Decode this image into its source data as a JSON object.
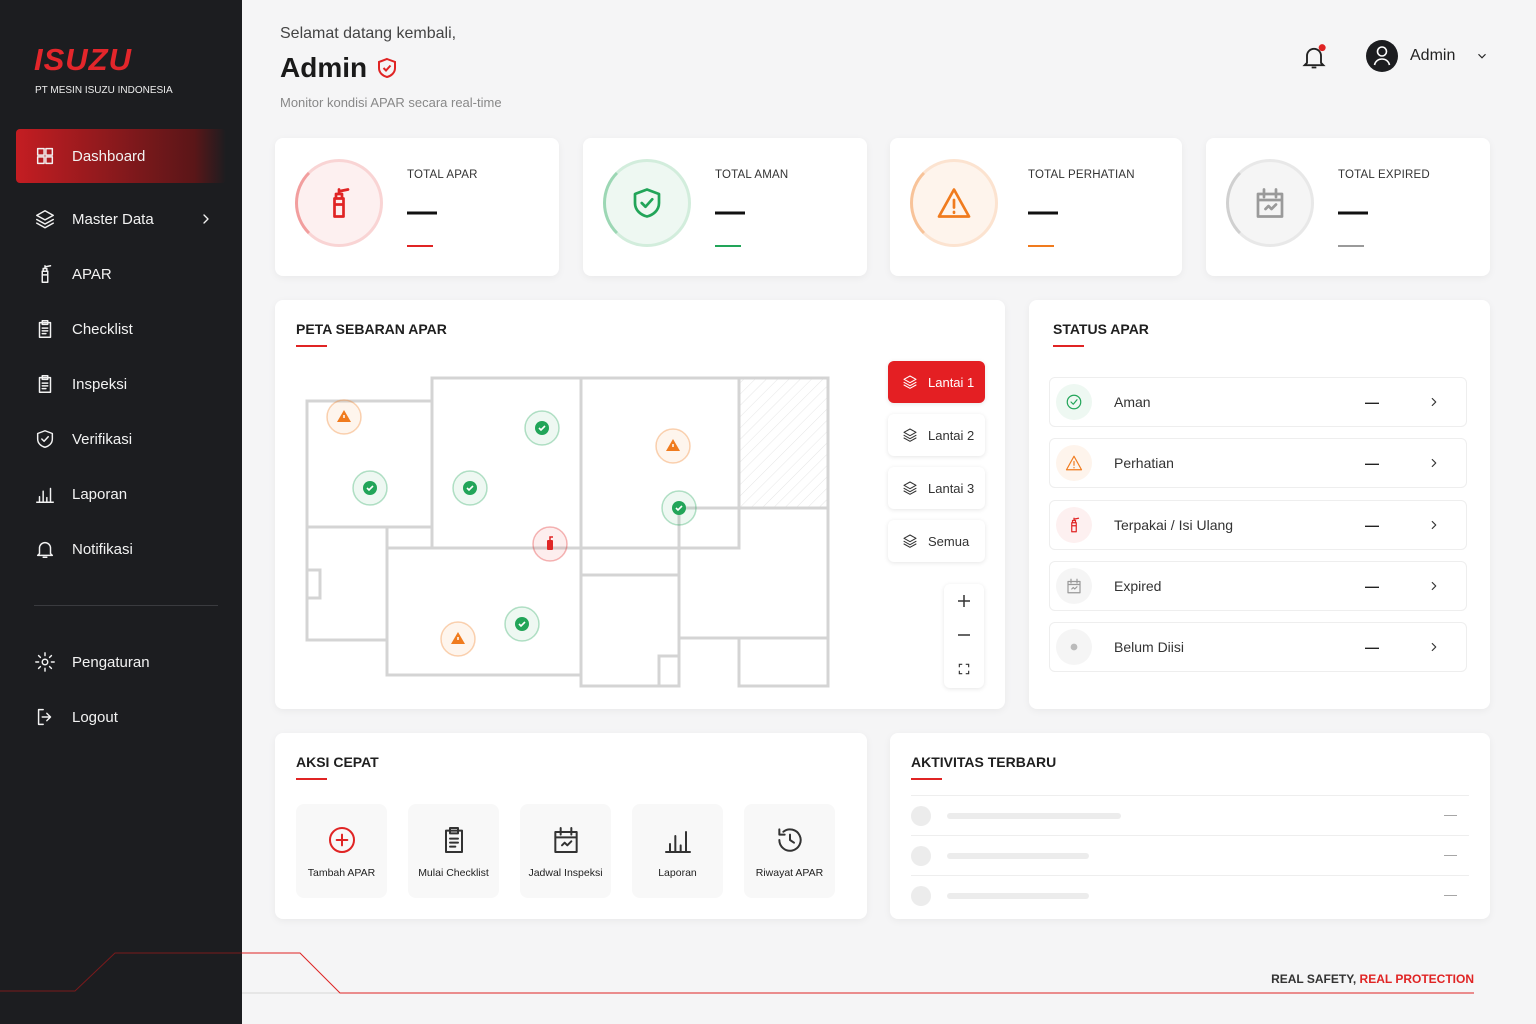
{
  "sidebar": {
    "brand": "ISUZU",
    "company": "PT MESIN ISUZU INDONESIA",
    "menu": [
      "Dashboard",
      "Master Data",
      "APAR",
      "Checklist",
      "Inspeksi",
      "Verifikasi",
      "Laporan",
      "Notifikasi"
    ],
    "settings_menu": [
      "Pengaturan",
      "Logout"
    ]
  },
  "header": {
    "greeting": "Selamat datang kembali,",
    "name": "Admin",
    "subtitle": "Monitor kondisi APAR secara real-time",
    "user": "Admin"
  },
  "stats": [
    {
      "label": "TOTAL APAR",
      "value": "—"
    },
    {
      "label": "TOTAL AMAN",
      "value": "—"
    },
    {
      "label": "TOTAL PERHATIAN",
      "value": "—"
    },
    {
      "label": "TOTAL EXPIRED",
      "value": "—"
    }
  ],
  "map": {
    "title": "PETA SEBARAN APAR",
    "floors": [
      "Lantai 1",
      "Lantai 2",
      "Lantai 3",
      "Semua"
    ]
  },
  "status": {
    "title": "STATUS APAR",
    "rows": [
      {
        "label": "Aman",
        "value": "—"
      },
      {
        "label": "Perhatian",
        "value": "—"
      },
      {
        "label": "Terpakai / Isi Ulang",
        "value": "—"
      },
      {
        "label": "Expired",
        "value": "—"
      },
      {
        "label": "Belum Diisi",
        "value": "—"
      }
    ]
  },
  "quick_actions": {
    "title": "AKSI CEPAT",
    "items": [
      "Tambah APAR",
      "Mulai Checklist",
      "Jadwal Inspeksi",
      "Laporan",
      "Riwayat APAR"
    ]
  },
  "activity": {
    "title": "AKTIVITAS TERBARU",
    "rows": [
      "—",
      "—",
      "—"
    ]
  },
  "footer": {
    "tagline": "REAL SAFETY,",
    "highlight": "REAL PROTECTION"
  }
}
